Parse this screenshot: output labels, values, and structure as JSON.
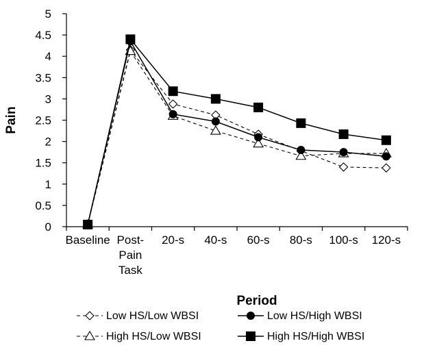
{
  "chart_data": {
    "type": "line",
    "title": "",
    "xlabel": "Period",
    "ylabel": "Pain",
    "ylim": [
      0,
      5
    ],
    "yticks": [
      "0",
      "0.5",
      "1",
      "1.5",
      "2",
      "2.5",
      "3",
      "3.5",
      "4",
      "4.5",
      "5"
    ],
    "categories": [
      [
        "Baseline"
      ],
      [
        "Post-",
        "Pain",
        "Task"
      ],
      [
        "20-s"
      ],
      [
        "40-s"
      ],
      [
        "60-s"
      ],
      [
        "80-s"
      ],
      [
        "100-s"
      ],
      [
        "120-s"
      ]
    ],
    "grid": false,
    "legend_position": "bottom",
    "series": [
      {
        "name": "Low HS/Low WBSI",
        "marker": "diamond-open",
        "line": "dashed",
        "values": [
          0.05,
          4.15,
          2.88,
          2.62,
          2.17,
          1.78,
          1.4,
          1.38
        ]
      },
      {
        "name": "Low HS/High WBSI",
        "marker": "circle-filled",
        "line": "solid",
        "values": [
          0.05,
          4.35,
          2.64,
          2.47,
          2.1,
          1.8,
          1.75,
          1.65
        ]
      },
      {
        "name": "High HS/Low WBSI",
        "marker": "triangle-open",
        "line": "dashed",
        "values": [
          0.05,
          4.12,
          2.6,
          2.25,
          1.95,
          1.66,
          1.72,
          1.72
        ]
      },
      {
        "name": "High HS/High WBSI",
        "marker": "square-filled",
        "line": "solid",
        "values": [
          0.05,
          4.4,
          3.18,
          3.0,
          2.8,
          2.43,
          2.17,
          2.03
        ]
      }
    ],
    "colors": {
      "line": "#000000",
      "background": "#ffffff"
    }
  }
}
